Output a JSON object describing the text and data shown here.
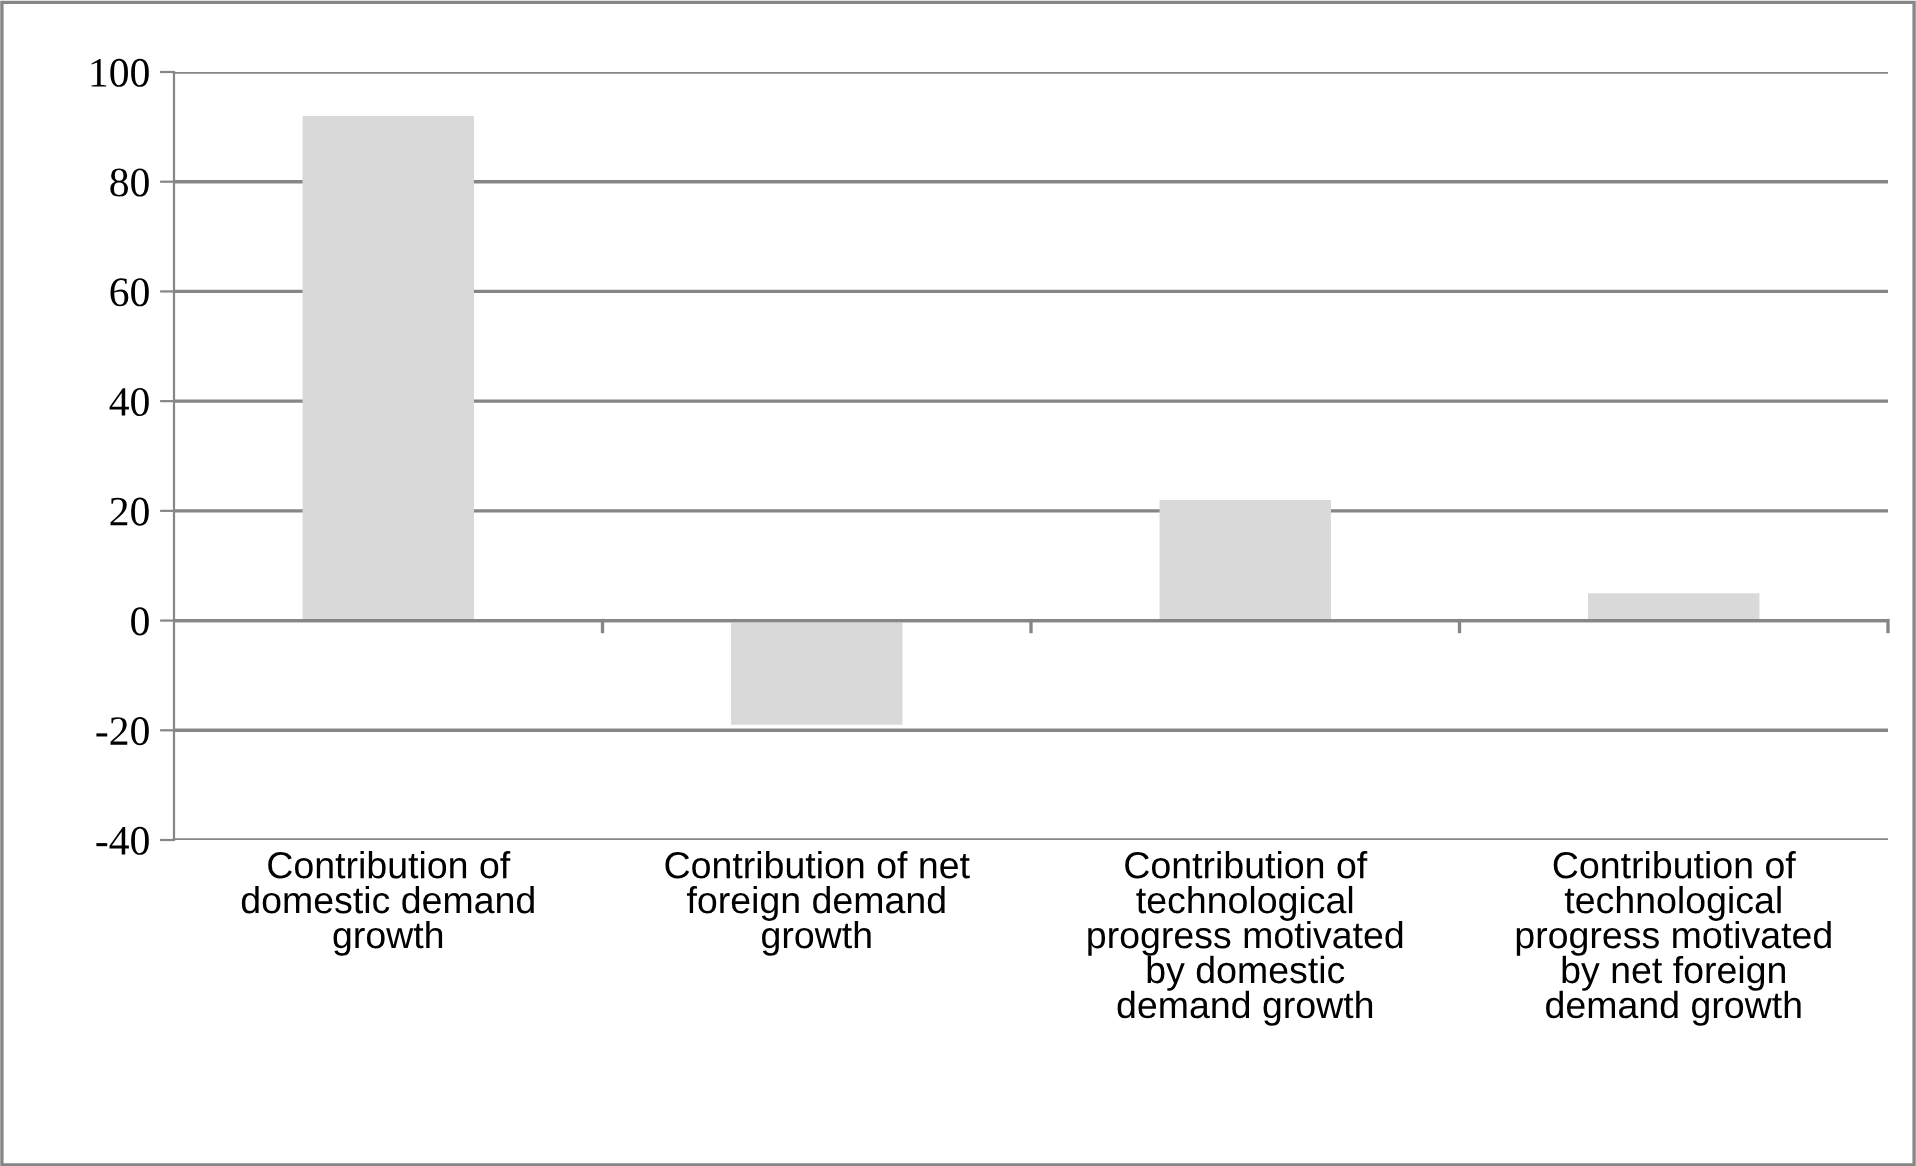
{
  "chart_data": {
    "type": "bar",
    "categories": [
      "Contribution of\ndomestic demand\ngrowth",
      "Contribution of net\nforeign demand\ngrowth",
      "Contribution of\ntechnological\nprogress motivated\nby domestic\ndemand growth",
      "Contribution of\ntechnological\nprogress motivated\nby net foreign\ndemand growth"
    ],
    "values": [
      92,
      -19,
      22,
      5
    ],
    "color": "#d9d9d9",
    "ylim": [
      -40,
      100
    ],
    "yticks": [
      -40,
      -20,
      0,
      20,
      40,
      60,
      80,
      100
    ],
    "grid": "y",
    "legend": false
  }
}
